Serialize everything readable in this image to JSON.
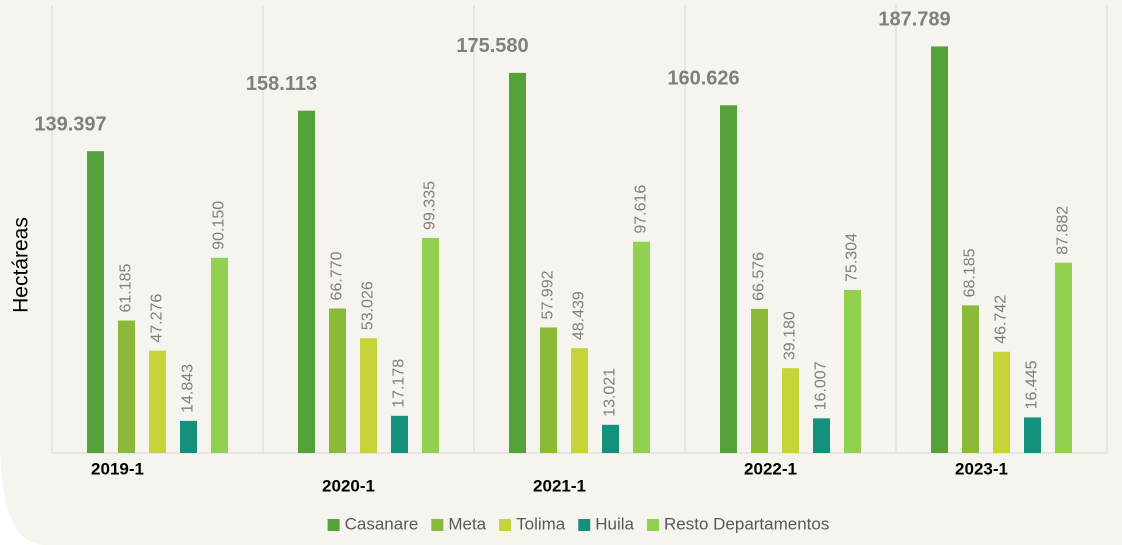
{
  "chart_data": {
    "type": "bar",
    "y_axis_label": "Hectáreas",
    "categories": [
      "2019-1",
      "2020-1",
      "2021-1",
      "2022-1",
      "2023-1"
    ],
    "ylim": [
      0,
      200000
    ],
    "series": [
      {
        "name": "Casanare",
        "color": "#55a13a",
        "values": [
          139397,
          158113,
          175580,
          160626,
          187789
        ],
        "value_labels": [
          "139.397",
          "158.113",
          "175.580",
          "160.626",
          "187.789"
        ]
      },
      {
        "name": "Meta",
        "color": "#8bba3a",
        "values": [
          61185,
          66770,
          57992,
          66576,
          68185
        ],
        "value_labels": [
          "61.185",
          "66.770",
          "57.992",
          "66.576",
          "68.185"
        ]
      },
      {
        "name": "Tolima",
        "color": "#c6d43a",
        "values": [
          47276,
          53026,
          48439,
          39180,
          46742
        ],
        "value_labels": [
          "47.276",
          "53.026",
          "48.439",
          "39.180",
          "46.742"
        ]
      },
      {
        "name": "Huila",
        "color": "#14917a",
        "values": [
          14843,
          17178,
          13021,
          16007,
          16445
        ],
        "value_labels": [
          "14.843",
          "17.178",
          "13.021",
          "16.007",
          "16.445"
        ]
      },
      {
        "name": "Resto Departamentos",
        "color": "#92d050",
        "values": [
          90150,
          99335,
          97616,
          75304,
          87882
        ],
        "value_labels": [
          "90.150",
          "99.335",
          "97.616",
          "75.304",
          "87.882"
        ]
      }
    ]
  }
}
